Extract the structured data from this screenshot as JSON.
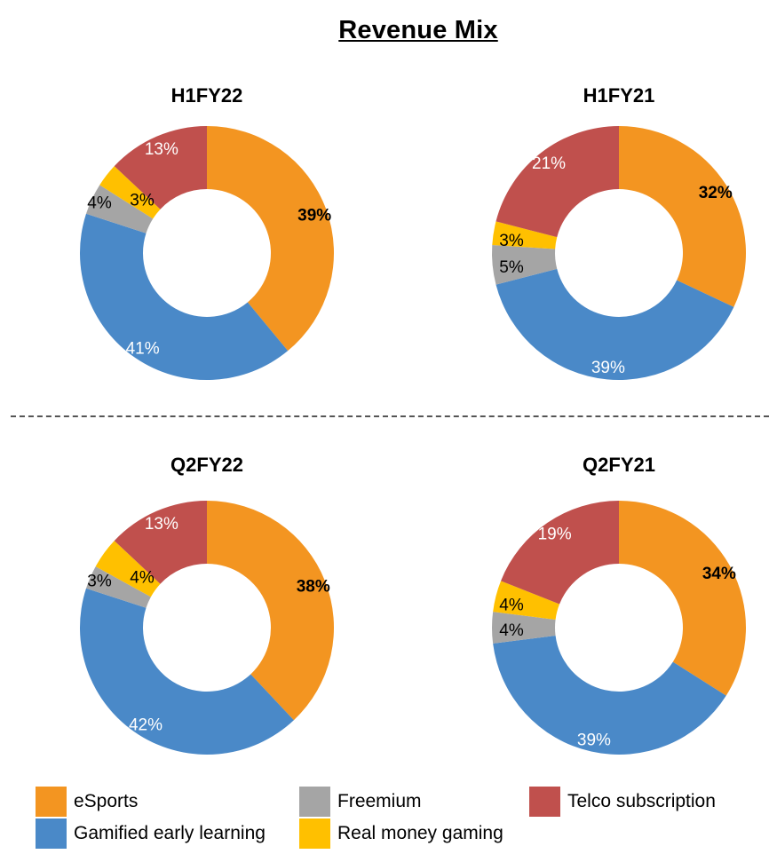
{
  "chart_data": {
    "title": "Revenue Mix",
    "type": "pie",
    "categories": [
      "eSports",
      "Gamified early learning",
      "Freemium",
      "Real money gaming",
      "Telco subscription"
    ],
    "colors": {
      "eSports": "#F39521",
      "Gamified early learning": "#4A89C8",
      "Freemium": "#A5A5A5",
      "Real money gaming": "#FFC000",
      "Telco subscription": "#C0504D"
    },
    "legend_position": "bottom",
    "charts": [
      {
        "title": "H1FY22",
        "labels": [
          "39%",
          "41%",
          "4%",
          "3%",
          "13%"
        ],
        "values": [
          39,
          41,
          4,
          3,
          13
        ]
      },
      {
        "title": "H1FY21",
        "labels": [
          "32%",
          "39%",
          "5%",
          "3%",
          "21%"
        ],
        "values": [
          32,
          39,
          5,
          3,
          21
        ]
      },
      {
        "title": "Q2FY22",
        "labels": [
          "38%",
          "42%",
          "3%",
          "4%",
          "13%"
        ],
        "values": [
          38,
          42,
          3,
          4,
          13
        ]
      },
      {
        "title": "Q2FY21",
        "labels": [
          "34%",
          "39%",
          "4%",
          "4%",
          "19%"
        ],
        "values": [
          34,
          39,
          4,
          4,
          19
        ]
      }
    ]
  },
  "legend": [
    {
      "label": "eSports",
      "color": "#F39521"
    },
    {
      "label": "Freemium",
      "color": "#A5A5A5"
    },
    {
      "label": "Telco subscription",
      "color": "#C0504D"
    },
    {
      "label": "Gamified early learning",
      "color": "#4A89C8"
    },
    {
      "label": "Real money gaming",
      "color": "#FFC000"
    }
  ]
}
